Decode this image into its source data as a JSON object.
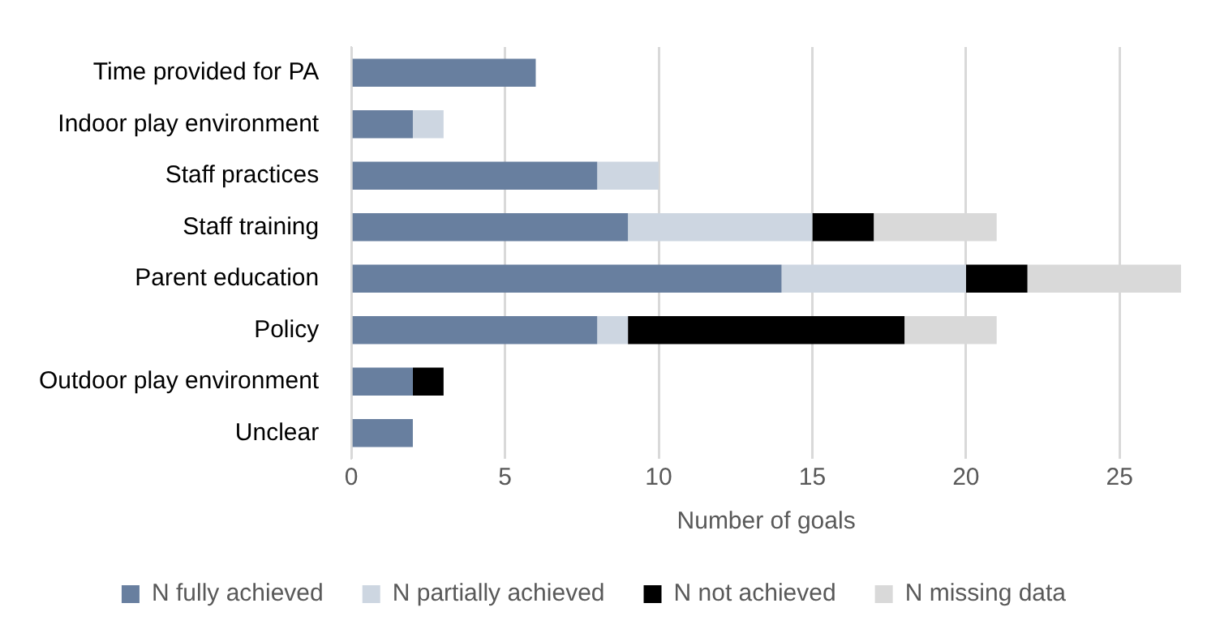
{
  "chart_data": {
    "type": "bar",
    "orientation": "horizontal",
    "stacked": true,
    "xlabel": "Number of goals",
    "categories": [
      "Time provided for PA",
      "Indoor play environment",
      "Staff practices",
      "Staff training",
      "Parent education",
      "Policy",
      "Outdoor play environment",
      "Unclear"
    ],
    "series": [
      {
        "name": "N fully achieved",
        "color": "#687f9f",
        "values": [
          6,
          2,
          8,
          9,
          14,
          8,
          2,
          2
        ]
      },
      {
        "name": "N partially achieved",
        "color": "#cdd6e1",
        "values": [
          0,
          1,
          2,
          6,
          6,
          1,
          0,
          0
        ]
      },
      {
        "name": "N not achieved",
        "color": "#000000",
        "values": [
          0,
          0,
          0,
          2,
          2,
          9,
          1,
          0
        ]
      },
      {
        "name": "N missing data",
        "color": "#d9d9d9",
        "values": [
          0,
          0,
          0,
          4,
          5,
          3,
          0,
          0
        ]
      }
    ],
    "xlim": [
      0,
      27
    ],
    "xticks": [
      0,
      5,
      10,
      15,
      20,
      25
    ],
    "grid": "x",
    "legend": "bottom"
  }
}
